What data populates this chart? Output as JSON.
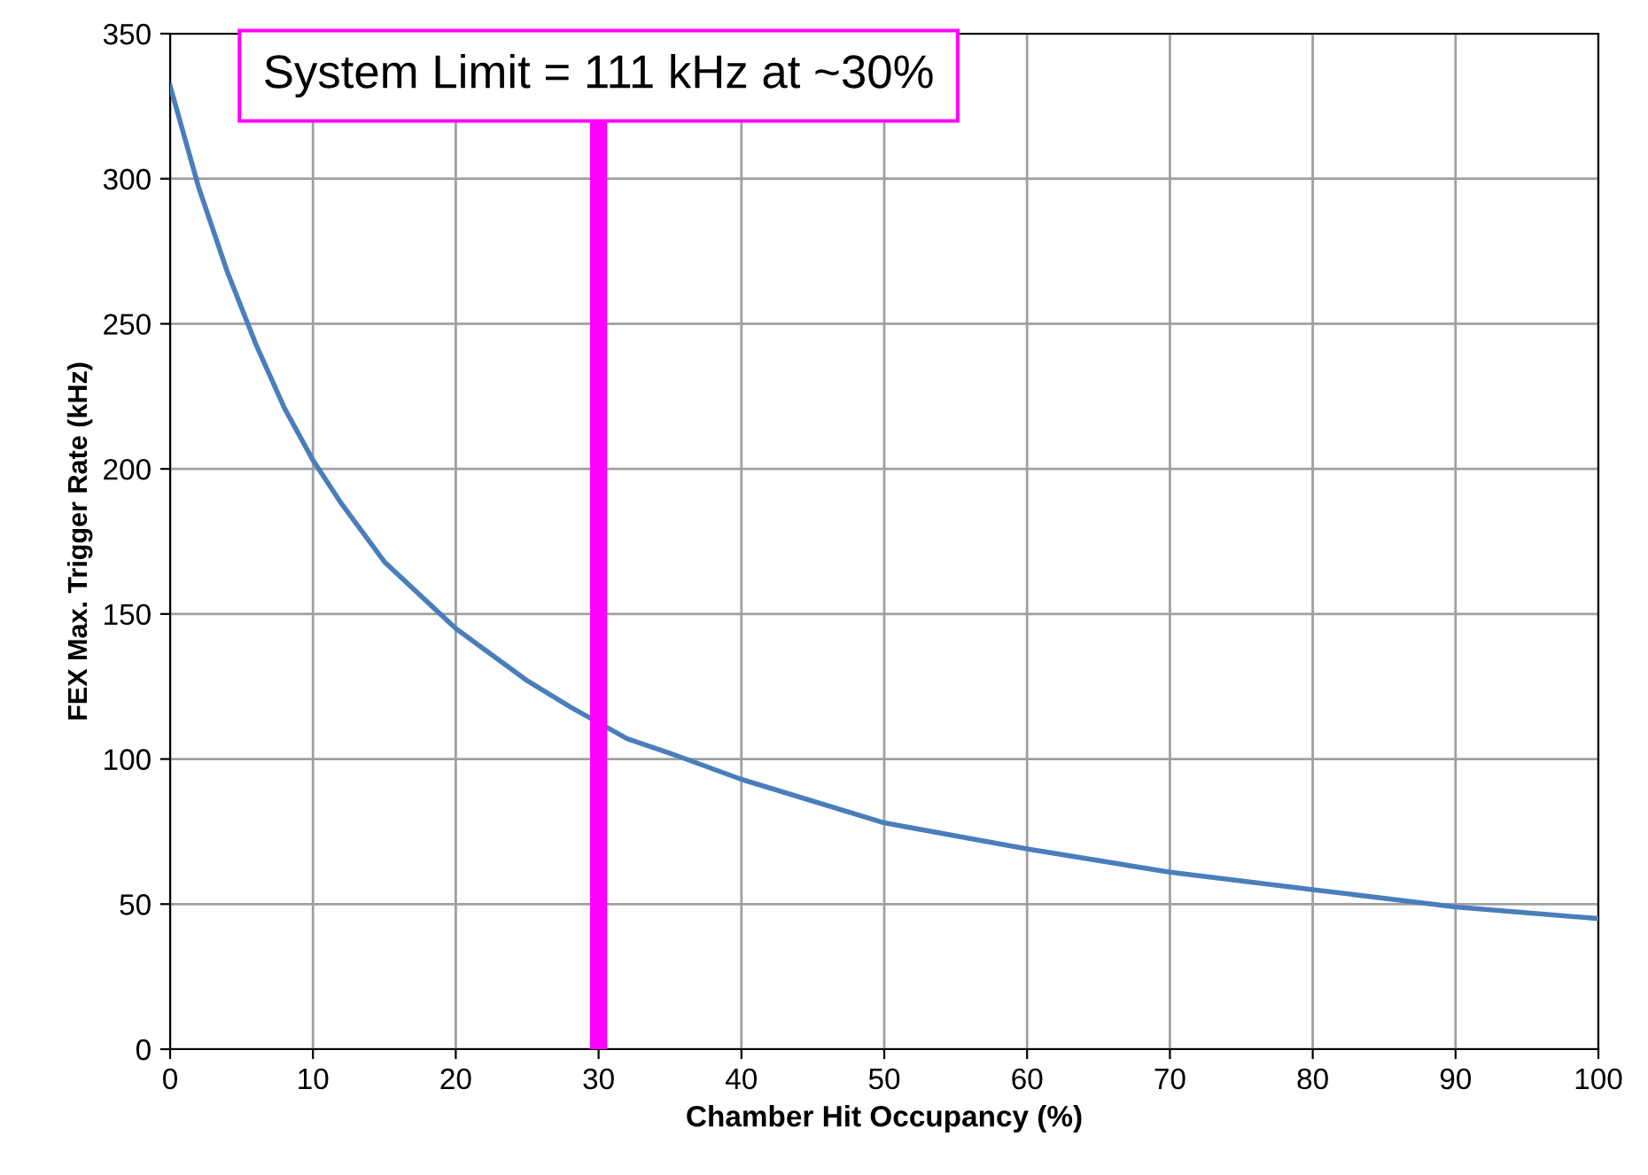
{
  "chart_data": {
    "type": "line",
    "xlabel": "Chamber Hit Occupancy (%)",
    "ylabel": "FEX Max. Trigger Rate (kHz)",
    "x": [
      0,
      2,
      4,
      6,
      8,
      10,
      12,
      15,
      20,
      25,
      28,
      32,
      35,
      40,
      50,
      60,
      70,
      80,
      90,
      100
    ],
    "series": [
      {
        "color": "#4a7ebb",
        "values": [
          332,
          297,
          268,
          243,
          221,
          203,
          188,
          168,
          145,
          127,
          118,
          107,
          102,
          93,
          78,
          69,
          61,
          55,
          49,
          45
        ]
      }
    ],
    "xlim": [
      0,
      100
    ],
    "ylim": [
      0,
      350
    ],
    "xticks": [
      0,
      10,
      20,
      30,
      40,
      50,
      60,
      70,
      80,
      90,
      100
    ],
    "yticks": [
      0,
      50,
      100,
      150,
      200,
      250,
      300,
      350
    ],
    "grid": true,
    "marker": "none",
    "line_style": "solid",
    "ref_lines": [
      {
        "axis": "x",
        "value": 30,
        "label": "System Limit = 111 kHz at ~30%",
        "color": "#ff00ff"
      }
    ]
  }
}
